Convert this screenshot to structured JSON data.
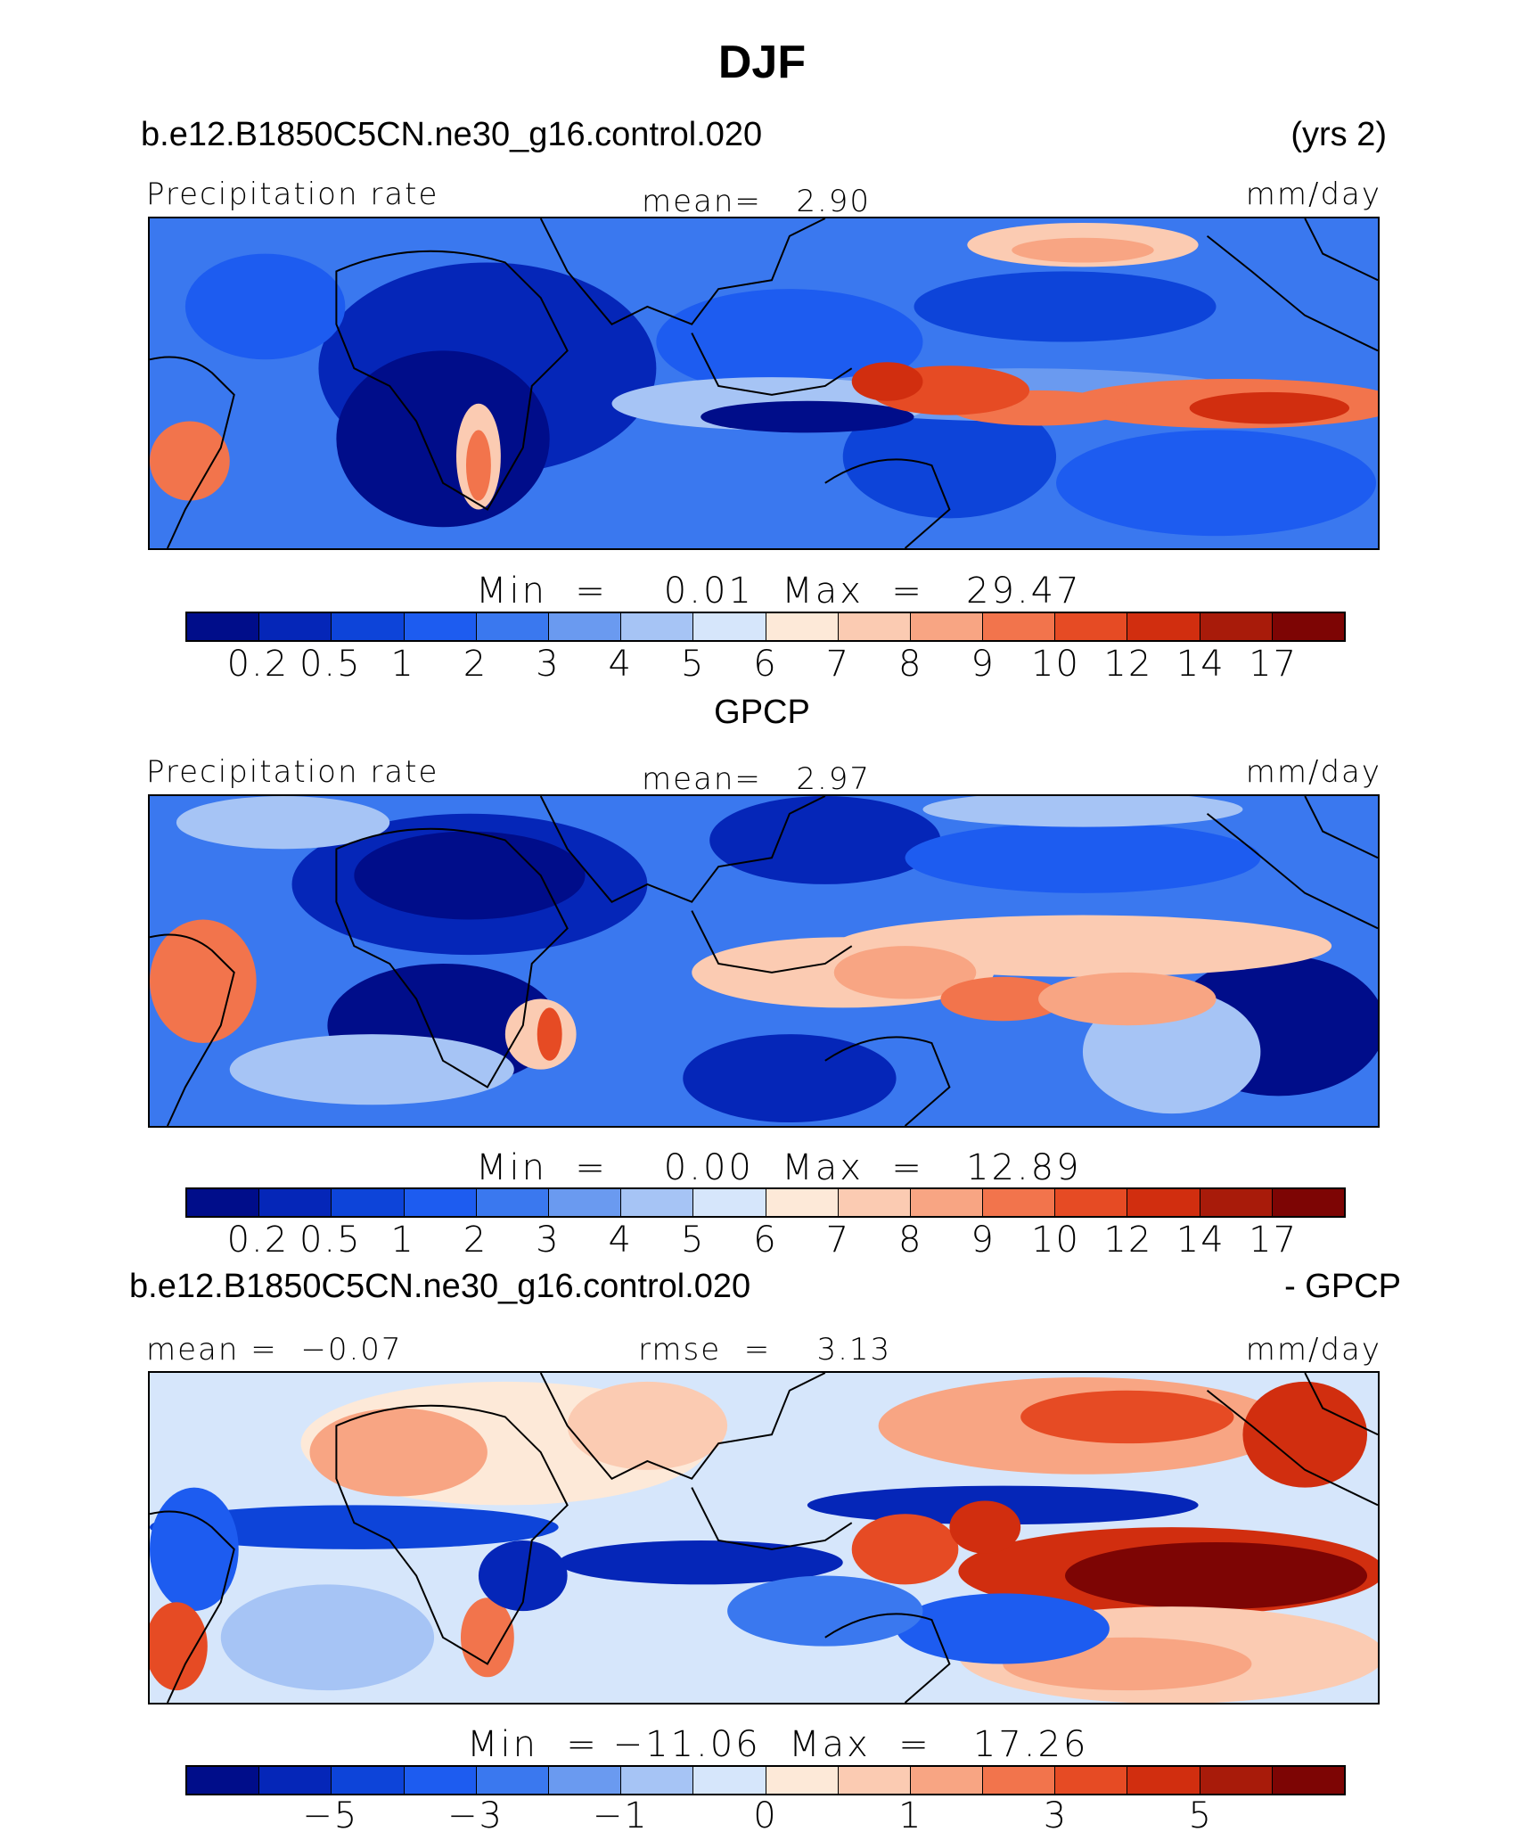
{
  "title": "DJF",
  "palette": [
    "#000d8a",
    "#0526b8",
    "#0d44d9",
    "#1d5cf0",
    "#3a78ef",
    "#6a9af0",
    "#a6c4f5",
    "#d6e6fb",
    "#fde9d8",
    "#fbcbb2",
    "#f8a583",
    "#f2744c",
    "#e64b24",
    "#d12e0f",
    "#a81b0a",
    "#7d0504"
  ],
  "colors_that_matter": {
    "ocean_low": "#0a2cb0",
    "rain_high": "#e8561e",
    "continent_line": "#000000"
  },
  "panels": [
    {
      "id": "model",
      "header_left": "b.e12.B1850C5CN.ne30_g16.control.020",
      "header_right": "(yrs 2)",
      "label_left": "Precipitation rate",
      "label_center": "mean=   2.90",
      "label_right": "mm/day",
      "stats": "Min  =    0.01  Max  =   29.47",
      "ticks": [
        "0.2",
        "0.5",
        "1",
        "2",
        "3",
        "4",
        "5",
        "6",
        "7",
        "8",
        "9",
        "10",
        "12",
        "14",
        "17"
      ]
    },
    {
      "id": "obs",
      "header_center": "GPCP",
      "label_left": "Precipitation rate",
      "label_center": "mean=   2.97",
      "label_right": "mm/day",
      "stats": "Min  =    0.00  Max  =   12.89",
      "ticks": [
        "0.2",
        "0.5",
        "1",
        "2",
        "3",
        "4",
        "5",
        "6",
        "7",
        "8",
        "9",
        "10",
        "12",
        "14",
        "17"
      ]
    },
    {
      "id": "diff",
      "header_left": "b.e12.B1850C5CN.ne30_g16.control.020",
      "header_right": "- GPCP",
      "label_left": "mean =  −0.07",
      "label_center": "rmse  =    3.13",
      "label_right": "mm/day",
      "stats": "Min  = −11.06  Max  =   17.26",
      "ticks": [
        "−5",
        "−3",
        "−1",
        "0",
        "1",
        "3",
        "5"
      ]
    }
  ]
}
